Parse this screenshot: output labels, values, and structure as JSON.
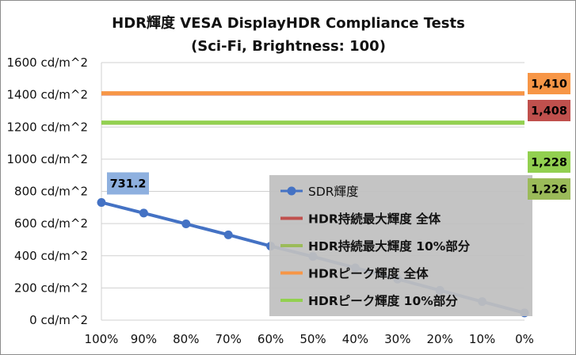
{
  "chart_data": {
    "type": "line",
    "title": "HDR輝度 VESA DisplayHDR Compliance Tests",
    "subtitle": "(Sci-Fi, Brightness: 100)",
    "categories": [
      "100%",
      "90%",
      "80%",
      "70%",
      "60%",
      "50%",
      "40%",
      "30%",
      "20%",
      "10%",
      "0%"
    ],
    "y_ticks": [
      "0 cd/m^2",
      "200 cd/m^2",
      "400 cd/m^2",
      "600 cd/m^2",
      "800 cd/m^2",
      "1000 cd/m^2",
      "1200 cd/m^2",
      "1400 cd/m^2",
      "1600 cd/m^2"
    ],
    "ylim": [
      0,
      1600
    ],
    "grid": true,
    "legend_position": "bottom-right",
    "series": [
      {
        "name": "SDR輝度",
        "color": "#4472c4",
        "markers": true,
        "values": [
          731.2,
          665,
          598,
          530,
          460,
          395,
          325,
          255,
          185,
          115,
          45
        ]
      },
      {
        "name": "HDR持続最大輝度 全体",
        "color": "#c0504d",
        "markers": false,
        "values": [
          1408,
          1408,
          1408,
          1408,
          1408,
          1408,
          1408,
          1408,
          1408,
          1408,
          1408
        ]
      },
      {
        "name": "HDR持続最大輝度 10%部分",
        "color": "#9bbb59",
        "markers": false,
        "values": [
          1226,
          1226,
          1226,
          1226,
          1226,
          1226,
          1226,
          1226,
          1226,
          1226,
          1226
        ]
      },
      {
        "name": "HDRピーク輝度 全体",
        "color": "#f79646",
        "markers": false,
        "values": [
          1410,
          1410,
          1410,
          1410,
          1410,
          1410,
          1410,
          1410,
          1410,
          1410,
          1410
        ]
      },
      {
        "name": "HDRピーク輝度 10%部分",
        "color": "#92d050",
        "markers": false,
        "values": [
          1228,
          1228,
          1228,
          1228,
          1228,
          1228,
          1228,
          1228,
          1228,
          1228,
          1228
        ]
      }
    ],
    "data_labels": [
      {
        "text": "731.2",
        "color": "#8eb0df",
        "series": 0,
        "at": 0
      },
      {
        "text": "1,410",
        "color": "#f79646",
        "series": 3,
        "at": "end"
      },
      {
        "text": "1,408",
        "color": "#c0504d",
        "series": 1,
        "at": "end"
      },
      {
        "text": "1,228",
        "color": "#92d050",
        "series": 4,
        "at": "end"
      },
      {
        "text": "1,226",
        "color": "#9bbb59",
        "series": 2,
        "at": "end"
      }
    ]
  }
}
